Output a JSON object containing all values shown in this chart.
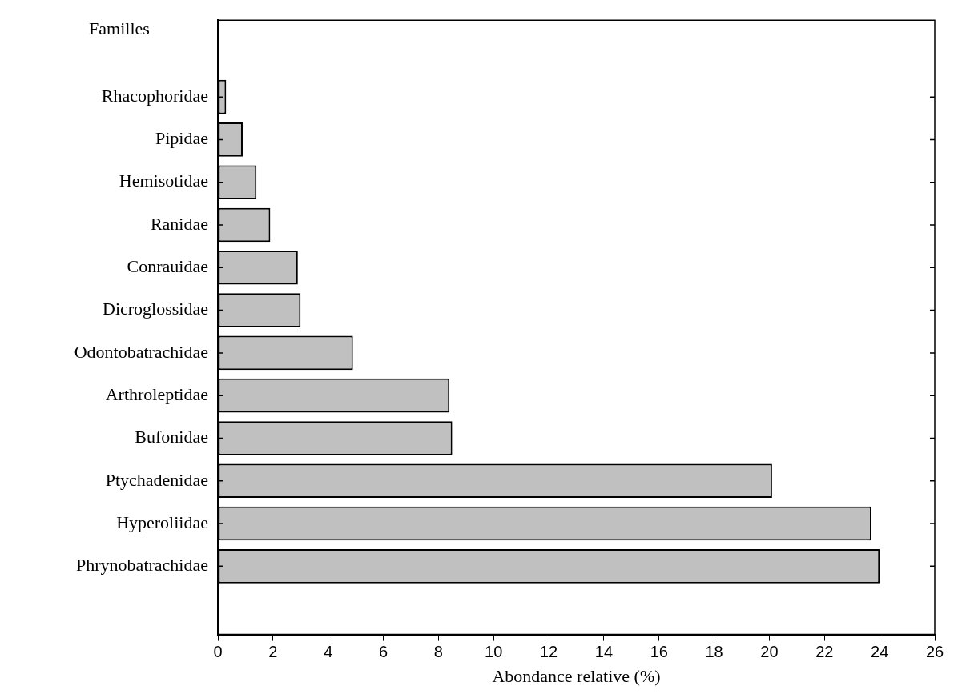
{
  "chart_data": {
    "type": "bar",
    "orientation": "horizontal",
    "ylabel": "Familles",
    "xlabel": "Abondance relative (%)",
    "categories": [
      "Rhacophoridae",
      "Pipidae",
      "Hemisotidae",
      "Ranidae",
      "Conrauidae",
      "Dicroglossidae",
      "Odontobatrachidae",
      "Arthroleptidae",
      "Bufonidae",
      "Ptychadenidae",
      "Hyperoliidae",
      "Phrynobatrachidae"
    ],
    "values": [
      0.3,
      0.9,
      1.4,
      1.9,
      2.9,
      3.0,
      4.9,
      8.4,
      8.5,
      20.1,
      23.7,
      24.0
    ],
    "color": "#c0c0c0",
    "xlim": [
      0,
      26
    ],
    "xticks": [
      0,
      2,
      4,
      6,
      8,
      10,
      12,
      14,
      16,
      18,
      20,
      22,
      24,
      26
    ],
    "grid": false,
    "legend": false
  }
}
